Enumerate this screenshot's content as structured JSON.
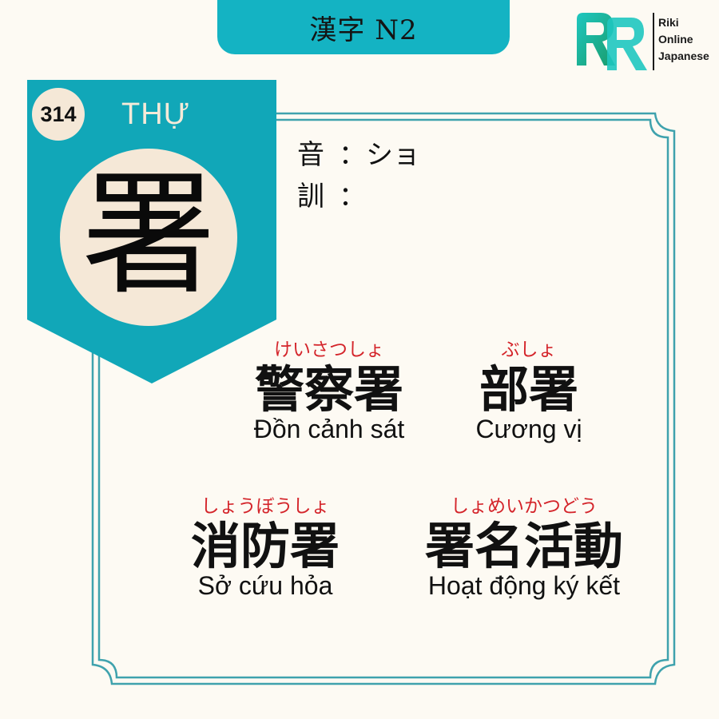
{
  "header": {
    "level_label": "漢字 N2"
  },
  "logo": {
    "lines": [
      "Riki",
      "Online",
      "Japanese"
    ]
  },
  "kanji_card": {
    "number": "314",
    "han_viet": "THỰ",
    "kanji": "署",
    "on_label": "音",
    "on_reading": "ショ",
    "kun_label": "訓",
    "kun_reading": "",
    "separator": "："
  },
  "vocabulary": [
    {
      "furigana": "けいさつしょ",
      "word": "警察署",
      "meaning": "Đồn cảnh sát"
    },
    {
      "furigana": "ぶしょ",
      "word": "部署",
      "meaning": "Cương vị"
    },
    {
      "furigana": "しょうぼうしょ",
      "word": "消防署",
      "meaning": "Sở cứu hỏa"
    },
    {
      "furigana": "しょめいかつどう",
      "word": "署名活動",
      "meaning": "Hoạt động ký kết"
    }
  ],
  "colors": {
    "teal": "#14b3c3",
    "banner_teal": "#11a7b8",
    "frame": "#3fa2ad",
    "cream": "#f5e8d7",
    "background": "#fdfaf3",
    "furigana_red": "#d4242a"
  }
}
